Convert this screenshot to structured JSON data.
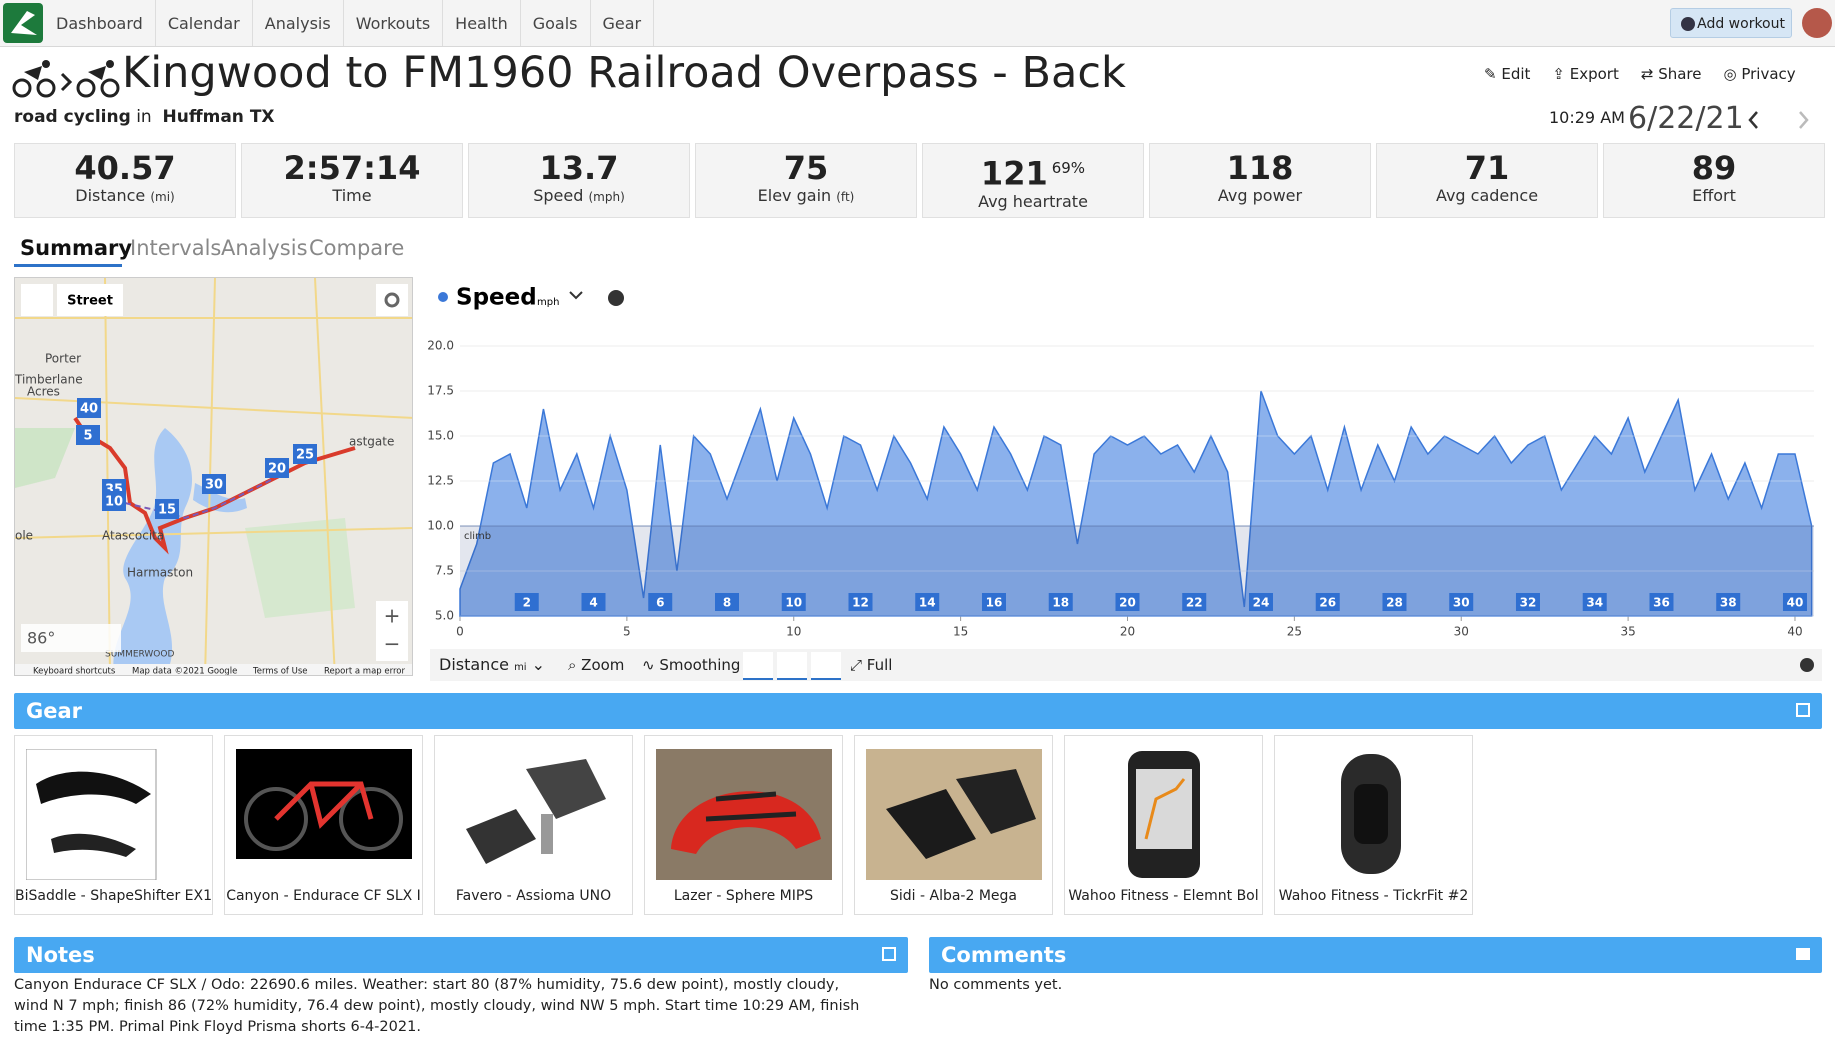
{
  "nav": {
    "items": [
      "Dashboard",
      "Calendar",
      "Analysis",
      "Workouts",
      "Health",
      "Goals",
      "Gear"
    ],
    "add_workout": "Add workout"
  },
  "header": {
    "title": "Kingwood to FM1960 Railroad Overpass - Back",
    "sport": "road cycling",
    "in": "in",
    "location": "Huffman TX",
    "actions": [
      "Edit",
      "Export",
      "Share",
      "Privacy"
    ],
    "time": "10:29 AM",
    "date": "6/22/21"
  },
  "stats": [
    {
      "value": "40.57",
      "label": "Distance",
      "unit": "(mi)"
    },
    {
      "value": "2:57:14",
      "label": "Time"
    },
    {
      "value": "13.7",
      "label": "Speed",
      "unit": "(mph)"
    },
    {
      "value": "75",
      "label": "Elev gain",
      "unit": "(ft)"
    },
    {
      "value": "121",
      "extra": "69%",
      "label": "Avg heartrate"
    },
    {
      "value": "118",
      "label": "Avg power"
    },
    {
      "value": "71",
      "label": "Avg cadence"
    },
    {
      "value": "89",
      "label": "Effort"
    }
  ],
  "tabs": [
    "Summary",
    "Intervals",
    "Analysis",
    "Compare"
  ],
  "map": {
    "layer": "Street",
    "places": [
      "Porter",
      "Timberlane",
      "Acres",
      "astgate",
      "ole",
      "Atascocita",
      "Harmaston",
      "SUMMERWOOD"
    ],
    "markers": [
      "40",
      "5",
      "35",
      "10",
      "15",
      "30",
      "20",
      "25"
    ],
    "weather": "86°",
    "footer": [
      "Keyboard shortcuts",
      "Map data ©2021 Google",
      "Terms of Use",
      "Report a map error"
    ]
  },
  "chart_data": {
    "type": "area",
    "title": "Speed",
    "unit": "mph",
    "color": "#7ea8ea",
    "line_color": "#3b78d8",
    "x": [
      0,
      0.5,
      1,
      1.5,
      2,
      2.5,
      3,
      3.5,
      4,
      4.5,
      5,
      5.5,
      6,
      6.5,
      7,
      7.5,
      8,
      8.5,
      9,
      9.5,
      10,
      10.5,
      11,
      11.5,
      12,
      12.5,
      13,
      13.5,
      14,
      14.5,
      15,
      15.5,
      16,
      16.5,
      17,
      17.5,
      18,
      18.5,
      19,
      19.5,
      20,
      20.5,
      21,
      21.5,
      22,
      22.5,
      23,
      23.5,
      24,
      24.5,
      25,
      25.5,
      26,
      26.5,
      27,
      27.5,
      28,
      28.5,
      29,
      29.5,
      30,
      30.5,
      31,
      31.5,
      32,
      32.5,
      33,
      33.5,
      34,
      34.5,
      35,
      35.5,
      36,
      36.5,
      37,
      37.5,
      38,
      38.5,
      39,
      39.5,
      40,
      40.5
    ],
    "values": [
      6.5,
      9,
      13.5,
      14,
      11,
      16.5,
      12,
      14,
      11,
      15,
      12,
      6,
      14.5,
      7.5,
      15,
      14,
      11.5,
      14,
      16.5,
      12.5,
      16,
      14,
      11,
      15,
      14.5,
      12,
      15,
      13.5,
      11.5,
      15.5,
      14,
      12,
      15.5,
      14,
      12,
      15,
      14.5,
      9,
      14,
      15,
      14.5,
      15,
      14,
      14.5,
      13,
      15,
      13,
      5.5,
      17.5,
      15,
      14,
      15,
      12,
      15.5,
      12,
      14.5,
      12.5,
      15.5,
      14,
      15,
      14.5,
      14,
      15,
      13.5,
      14.5,
      15,
      12,
      13.5,
      15,
      14,
      16,
      13,
      15,
      17,
      12,
      14,
      11.5,
      13.5,
      11,
      14,
      14,
      10
    ],
    "xlim": [
      0,
      40.57
    ],
    "ylim": [
      5,
      20
    ],
    "xticks": [
      0,
      5,
      10,
      15,
      20,
      25,
      30,
      35,
      40
    ],
    "yticks": [
      {
        "value": 5,
        "label": "5.0"
      },
      {
        "value": 7.5,
        "label": "7.5"
      },
      {
        "value": 10,
        "label": "10.0"
      },
      {
        "value": 12.5,
        "label": "12.5"
      },
      {
        "value": 15,
        "label": "15.0"
      },
      {
        "value": 17.5,
        "label": "17.5"
      },
      {
        "value": 20,
        "label": "20.0"
      }
    ],
    "grid": true,
    "markers": [
      2,
      4,
      6,
      8,
      10,
      12,
      14,
      16,
      18,
      20,
      22,
      24,
      26,
      28,
      30,
      32,
      34,
      36,
      38,
      40
    ],
    "annotations": [
      {
        "text": "climb",
        "y": 10
      }
    ]
  },
  "chart_toolbar": {
    "axis": "Distance",
    "unit": "mi",
    "items": [
      "Zoom",
      "Smoothing",
      "Full"
    ]
  },
  "gear": {
    "title": "Gear",
    "items": [
      "BiSaddle - ShapeShifter EX1",
      "Canyon - Endurace CF SLX I",
      "Favero - Assioma UNO",
      "Lazer - Sphere MIPS",
      "Sidi - Alba-2 Mega",
      "Wahoo Fitness - Elemnt Bol",
      "Wahoo Fitness - TickrFit #2"
    ]
  },
  "notes": {
    "title": "Notes",
    "text": "Canyon Endurace CF SLX / Odo: 22690.6 miles. Weather: start 80 (87% humidity, 75.6 dew point), mostly cloudy, wind N 7 mph; finish 86 (72% humidity, 76.4 dew point), mostly cloudy, wind NW 5 mph. Start time 10:29 AM, finish time 1:35 PM. Primal Pink Floyd Prisma shorts 6-4-2021."
  },
  "comments": {
    "title": "Comments",
    "text": "No comments yet."
  }
}
